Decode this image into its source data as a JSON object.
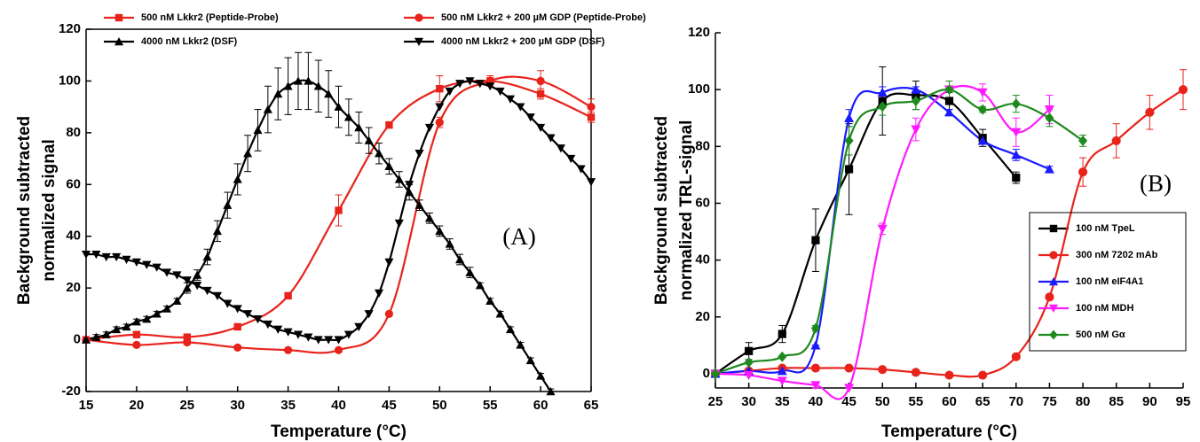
{
  "chart_data": [
    {
      "type": "line",
      "xlabel": "Temperature (°C)",
      "ylabel": [
        "Background subtracted",
        "normalized signal"
      ],
      "annotation": "(A)",
      "xlim": [
        15,
        65
      ],
      "xticks": [
        15,
        20,
        25,
        30,
        35,
        40,
        45,
        50,
        55,
        60,
        65
      ],
      "ylim": [
        -20,
        120
      ],
      "yticks": [
        -20,
        0,
        20,
        40,
        60,
        80,
        100,
        120
      ],
      "frame": true,
      "legend": "top",
      "series": [
        {
          "name": "500 nM Lkkr2 (Peptide-Probe)",
          "color": "#e8231b",
          "marker": "square",
          "x": [
            15,
            20,
            25,
            30,
            35,
            40,
            45,
            50,
            55,
            60,
            65
          ],
          "values": [
            0,
            2,
            1,
            5,
            17,
            50,
            83,
            97,
            100,
            95,
            86
          ],
          "errors": [
            0,
            0,
            0,
            0,
            0,
            6,
            1,
            5,
            2,
            2,
            2
          ]
        },
        {
          "name": "500 nM Lkkr2 + 200 µM GDP (Peptide-Probe)",
          "color": "#e8231b",
          "marker": "circle",
          "x": [
            15,
            20,
            25,
            30,
            35,
            40,
            45,
            50,
            55,
            60,
            65
          ],
          "values": [
            0,
            -2,
            -1,
            -3,
            -4,
            -4,
            10,
            84,
            100,
            100,
            90
          ],
          "errors": [
            0,
            0,
            0,
            0,
            0,
            0,
            0,
            2,
            2,
            4,
            3
          ]
        },
        {
          "name": "4000 nM Lkkr2  (DSF)",
          "color": "#000000",
          "marker": "triangle-up",
          "x": [
            15,
            16,
            17,
            18,
            19,
            20,
            21,
            22,
            23,
            24,
            25,
            26,
            27,
            28,
            29,
            30,
            31,
            32,
            33,
            34,
            35,
            36,
            37,
            38,
            39,
            40,
            41,
            42,
            43,
            44,
            45,
            46,
            47,
            48,
            49,
            50,
            51,
            52,
            53,
            54,
            55,
            56,
            57,
            58,
            59,
            60,
            61
          ],
          "values": [
            0,
            1,
            2,
            4,
            5,
            7,
            8,
            10,
            12,
            15,
            20,
            25,
            32,
            42,
            52,
            62,
            72,
            81,
            89,
            95,
            98,
            100,
            100,
            98,
            95,
            90,
            86,
            82,
            77,
            72,
            67,
            62,
            57,
            52,
            47,
            42,
            37,
            31,
            26,
            21,
            15,
            10,
            4,
            -2,
            -8,
            -14,
            -20
          ],
          "errors": [
            1,
            1,
            1,
            1,
            1,
            1,
            1,
            1,
            1,
            1,
            2,
            2,
            3,
            4,
            5,
            6,
            7,
            8,
            9,
            10,
            11,
            11,
            11,
            10,
            9,
            8,
            7,
            6,
            5,
            4,
            3,
            3,
            3,
            2,
            2,
            2,
            2,
            2,
            2,
            1,
            1,
            1,
            1,
            1,
            1,
            1,
            1
          ]
        },
        {
          "name": "4000 nM Lkkr2 + 200 µM GDP (DSF)",
          "color": "#000000",
          "marker": "triangle-down",
          "x": [
            15,
            16,
            17,
            18,
            19,
            20,
            21,
            22,
            23,
            24,
            25,
            26,
            27,
            28,
            29,
            30,
            31,
            32,
            33,
            34,
            35,
            36,
            37,
            38,
            39,
            40,
            41,
            42,
            43,
            44,
            45,
            46,
            47,
            48,
            49,
            50,
            51,
            52,
            53,
            54,
            55,
            56,
            57,
            58,
            59,
            60,
            61,
            62,
            63,
            64,
            65
          ],
          "values": [
            33,
            33,
            32,
            32,
            31,
            30,
            29,
            28,
            26,
            25,
            23,
            21,
            19,
            17,
            14,
            12,
            10,
            8,
            6,
            4,
            3,
            2,
            1,
            0,
            0,
            0,
            2,
            5,
            10,
            18,
            30,
            45,
            60,
            72,
            82,
            90,
            96,
            99,
            100,
            99,
            98,
            96,
            93,
            90,
            86,
            82,
            78,
            74,
            70,
            66,
            61
          ]
        }
      ]
    },
    {
      "type": "line",
      "xlabel": "Temperature (°C)",
      "ylabel": [
        "Background subtracted",
        "normalized TRL-signal"
      ],
      "annotation": "(B)",
      "xlim": [
        25,
        95
      ],
      "xticks": [
        25,
        30,
        35,
        40,
        45,
        50,
        55,
        60,
        65,
        70,
        75,
        80,
        85,
        90,
        95
      ],
      "ylim": [
        -5,
        120
      ],
      "yticks": [
        0,
        20,
        40,
        60,
        80,
        100,
        120
      ],
      "frame": false,
      "legend": "lower right",
      "series": [
        {
          "name": "100 nM TpeL",
          "color": "#000000",
          "marker": "square",
          "x": [
            25,
            30,
            35,
            40,
            45,
            50,
            55,
            60,
            65,
            70
          ],
          "values": [
            0,
            8,
            14,
            47,
            72,
            96,
            98,
            96,
            83,
            69
          ],
          "errors": [
            0,
            3,
            3,
            11,
            16,
            12,
            5,
            3,
            3,
            2
          ]
        },
        {
          "name": "300 nM  7202 mAb",
          "color": "#e8231b",
          "marker": "circle",
          "x": [
            25,
            30,
            35,
            40,
            45,
            50,
            55,
            60,
            65,
            70,
            75,
            80,
            85,
            90,
            95
          ],
          "values": [
            0,
            1,
            2,
            2,
            2,
            1.5,
            0.5,
            -0.5,
            -0.5,
            6,
            27,
            71,
            82,
            92,
            100
          ],
          "errors": [
            0,
            0,
            0,
            0,
            0,
            0,
            0,
            0,
            0,
            1,
            1,
            5,
            6,
            6,
            7
          ]
        },
        {
          "name": "100 nM eIF4A1",
          "color": "#1a1aff",
          "marker": "triangle-up",
          "x": [
            25,
            30,
            35,
            40,
            45,
            50,
            55,
            60,
            65,
            70,
            75
          ],
          "values": [
            0,
            1,
            1,
            10,
            90,
            99,
            100,
            92,
            82,
            77,
            72
          ],
          "errors": [
            0,
            0,
            0,
            0,
            3,
            2,
            1,
            1,
            1,
            2,
            1
          ]
        },
        {
          "name": "100 nM  MDH",
          "color": "#ff1aff",
          "marker": "triangle-down",
          "x": [
            25,
            30,
            35,
            40,
            45,
            50,
            55,
            60,
            65,
            70,
            75
          ],
          "values": [
            0,
            -0.5,
            -2.5,
            -4,
            -5,
            51,
            86,
            100,
            99,
            85,
            93
          ],
          "errors": [
            0,
            0,
            0,
            1,
            0,
            2,
            4,
            3,
            3,
            5,
            5
          ]
        },
        {
          "name": "500 nM Gα",
          "color": "#1e8a1e",
          "marker": "diamond",
          "x": [
            25,
            30,
            35,
            40,
            45,
            50,
            55,
            60,
            65,
            70,
            75,
            80
          ],
          "values": [
            0,
            4,
            6,
            16,
            82,
            94,
            96,
            100,
            93,
            95,
            90,
            82
          ],
          "errors": [
            0,
            0,
            0,
            1,
            5,
            3,
            3,
            3,
            1,
            3,
            3,
            2
          ]
        }
      ]
    }
  ]
}
